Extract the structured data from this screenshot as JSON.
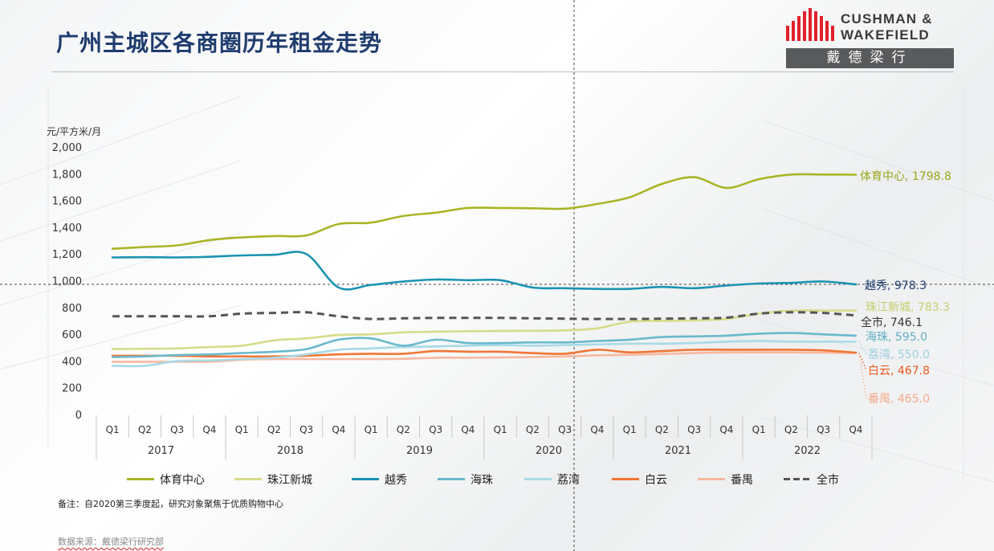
{
  "title": "广州主城区各商圈历年租金走势",
  "logo": {
    "line1": "CUSHMAN &",
    "line2": "WAKEFIELD",
    "cn": "戴德梁行"
  },
  "note": "备注：自2020第三季度起，研究对象聚焦于优质购物中心",
  "source": "数据来源：戴德梁行研究部",
  "chart_data": {
    "type": "line",
    "ylabel": "元/平方米/月",
    "ylim": [
      0,
      2000
    ],
    "yticks": [
      0,
      200,
      400,
      600,
      800,
      1000,
      1200,
      1400,
      1600,
      1800,
      2000
    ],
    "ytick_labels": [
      "0",
      "200",
      "400",
      "600",
      "800",
      "1,000",
      "1,200",
      "1,400",
      "1,600",
      "1,800",
      "2,000"
    ],
    "categories": [
      "Q1",
      "Q2",
      "Q3",
      "Q4",
      "Q1",
      "Q2",
      "Q3",
      "Q4",
      "Q1",
      "Q2",
      "Q3",
      "Q4",
      "Q1",
      "Q2",
      "Q3",
      "Q4",
      "Q1",
      "Q2",
      "Q3",
      "Q4",
      "Q1",
      "Q2",
      "Q3",
      "Q4"
    ],
    "years": [
      "2017",
      "2018",
      "2019",
      "2020",
      "2021",
      "2022"
    ],
    "legend_position": "bottom",
    "grid": false,
    "series": [
      {
        "name": "体育中心",
        "color": "#a9b526",
        "dash": false,
        "end_label": "体育中心, 1798.8",
        "label_color": "#9aa61c",
        "values": [
          1245,
          1258,
          1270,
          1310,
          1330,
          1340,
          1345,
          1430,
          1440,
          1490,
          1515,
          1550,
          1550,
          1548,
          1545,
          1580,
          1630,
          1730,
          1780,
          1700,
          1765,
          1800,
          1800,
          1798.8
        ]
      },
      {
        "name": "珠江新城",
        "color": "#d6dc8a",
        "dash": false,
        "end_label": "珠江新城, 783.3",
        "label_color": "#c8cf6e",
        "values": [
          495,
          497,
          500,
          510,
          520,
          560,
          575,
          600,
          605,
          620,
          625,
          628,
          630,
          632,
          635,
          650,
          700,
          705,
          710,
          720,
          760,
          782,
          783,
          783.3
        ]
      },
      {
        "name": "越秀",
        "color": "#1a93b0",
        "dash": false,
        "end_label": "越秀, 978.3",
        "label_color": "#1f3c6e",
        "values": [
          1180,
          1182,
          1180,
          1185,
          1195,
          1200,
          1205,
          955,
          975,
          1000,
          1015,
          1010,
          1010,
          955,
          950,
          945,
          945,
          960,
          950,
          970,
          985,
          990,
          1000,
          978.3
        ]
      },
      {
        "name": "海珠",
        "color": "#6ab9cc",
        "dash": false,
        "end_label": "海珠, 595.0",
        "label_color": "#5fb0c4",
        "values": [
          435,
          440,
          450,
          455,
          465,
          475,
          495,
          565,
          575,
          520,
          565,
          540,
          540,
          545,
          545,
          555,
          565,
          585,
          590,
          595,
          610,
          615,
          605,
          595.0
        ]
      },
      {
        "name": "荔湾",
        "color": "#a9d9e6",
        "dash": false,
        "end_label": "荔湾, 550.0",
        "label_color": "#9ccfe0",
        "values": [
          370,
          370,
          405,
          410,
          420,
          430,
          455,
          490,
          500,
          510,
          515,
          520,
          525,
          520,
          525,
          530,
          535,
          535,
          540,
          550,
          555,
          550,
          550,
          550.0
        ]
      },
      {
        "name": "白云",
        "color": "#f07636",
        "dash": false,
        "end_label": "白云, 467.8",
        "label_color": "#ee5a1c",
        "values": [
          445,
          445,
          445,
          440,
          440,
          440,
          445,
          455,
          460,
          460,
          480,
          475,
          475,
          465,
          460,
          490,
          470,
          480,
          490,
          490,
          490,
          490,
          485,
          467.8
        ]
      },
      {
        "name": "番禺",
        "color": "#f7b8a0",
        "dash": false,
        "end_label": "番禺, 465.0",
        "label_color": "#f5a98c",
        "values": [
          400,
          400,
          400,
          400,
          415,
          420,
          420,
          420,
          420,
          422,
          430,
          430,
          432,
          435,
          440,
          448,
          452,
          458,
          465,
          470,
          470,
          470,
          468,
          465.0
        ]
      },
      {
        "name": "全市",
        "color": "#555555",
        "dash": true,
        "end_label": "全市, 746.1",
        "label_color": "#333333",
        "values": [
          740,
          740,
          740,
          740,
          760,
          765,
          770,
          740,
          720,
          725,
          728,
          728,
          728,
          725,
          722,
          720,
          720,
          722,
          725,
          730,
          760,
          770,
          765,
          746.1
        ]
      }
    ]
  }
}
